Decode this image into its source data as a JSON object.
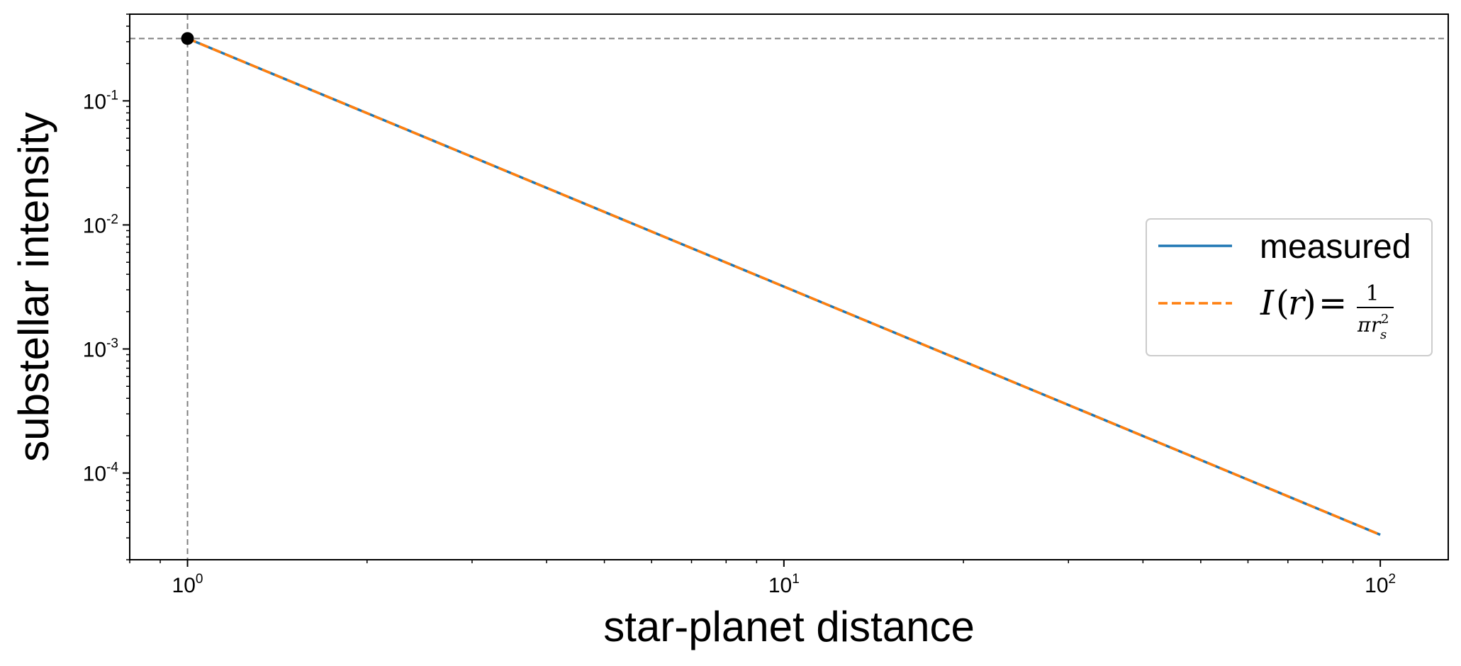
{
  "chart_data": {
    "type": "line",
    "xlabel": "star-planet distance",
    "ylabel": "substellar intensity",
    "x_scale": "log",
    "y_scale": "log",
    "xlim": [
      0.8,
      130
    ],
    "ylim": [
      2e-05,
      0.5
    ],
    "x_ticks": [
      {
        "base": "10",
        "exp": "0",
        "value": 1
      },
      {
        "base": "10",
        "exp": "1",
        "value": 10
      },
      {
        "base": "10",
        "exp": "2",
        "value": 100
      }
    ],
    "y_ticks": [
      {
        "base": "10",
        "exp": "-1",
        "value": 0.1
      },
      {
        "base": "10",
        "exp": "-2",
        "value": 0.01
      },
      {
        "base": "10",
        "exp": "-3",
        "value": 0.001
      },
      {
        "base": "10",
        "exp": "-4",
        "value": 0.0001
      }
    ],
    "series": [
      {
        "name": "measured",
        "color": "#1f77b4",
        "style": "solid",
        "x": [
          1,
          100
        ],
        "y": [
          0.3183,
          3.183e-05
        ]
      },
      {
        "name": "I(r) = 1/(πr_s²)",
        "color": "#ff7f0e",
        "style": "dashed",
        "x": [
          1,
          100
        ],
        "y": [
          0.3183,
          3.183e-05
        ]
      }
    ],
    "reference_point": {
      "x": 1,
      "y": 0.3183,
      "color": "#000000"
    },
    "reference_lines": {
      "vertical_x": 1,
      "horizontal_y": 0.3183,
      "color": "#808080",
      "style": "dashed"
    },
    "legend": {
      "position": "center-right",
      "entries": [
        {
          "label": "measured",
          "color": "#1f77b4",
          "style": "solid"
        },
        {
          "label": "I(r) = 1/(πr_s²)",
          "color": "#ff7f0e",
          "style": "dashed",
          "math": true
        }
      ]
    },
    "grid": false
  }
}
